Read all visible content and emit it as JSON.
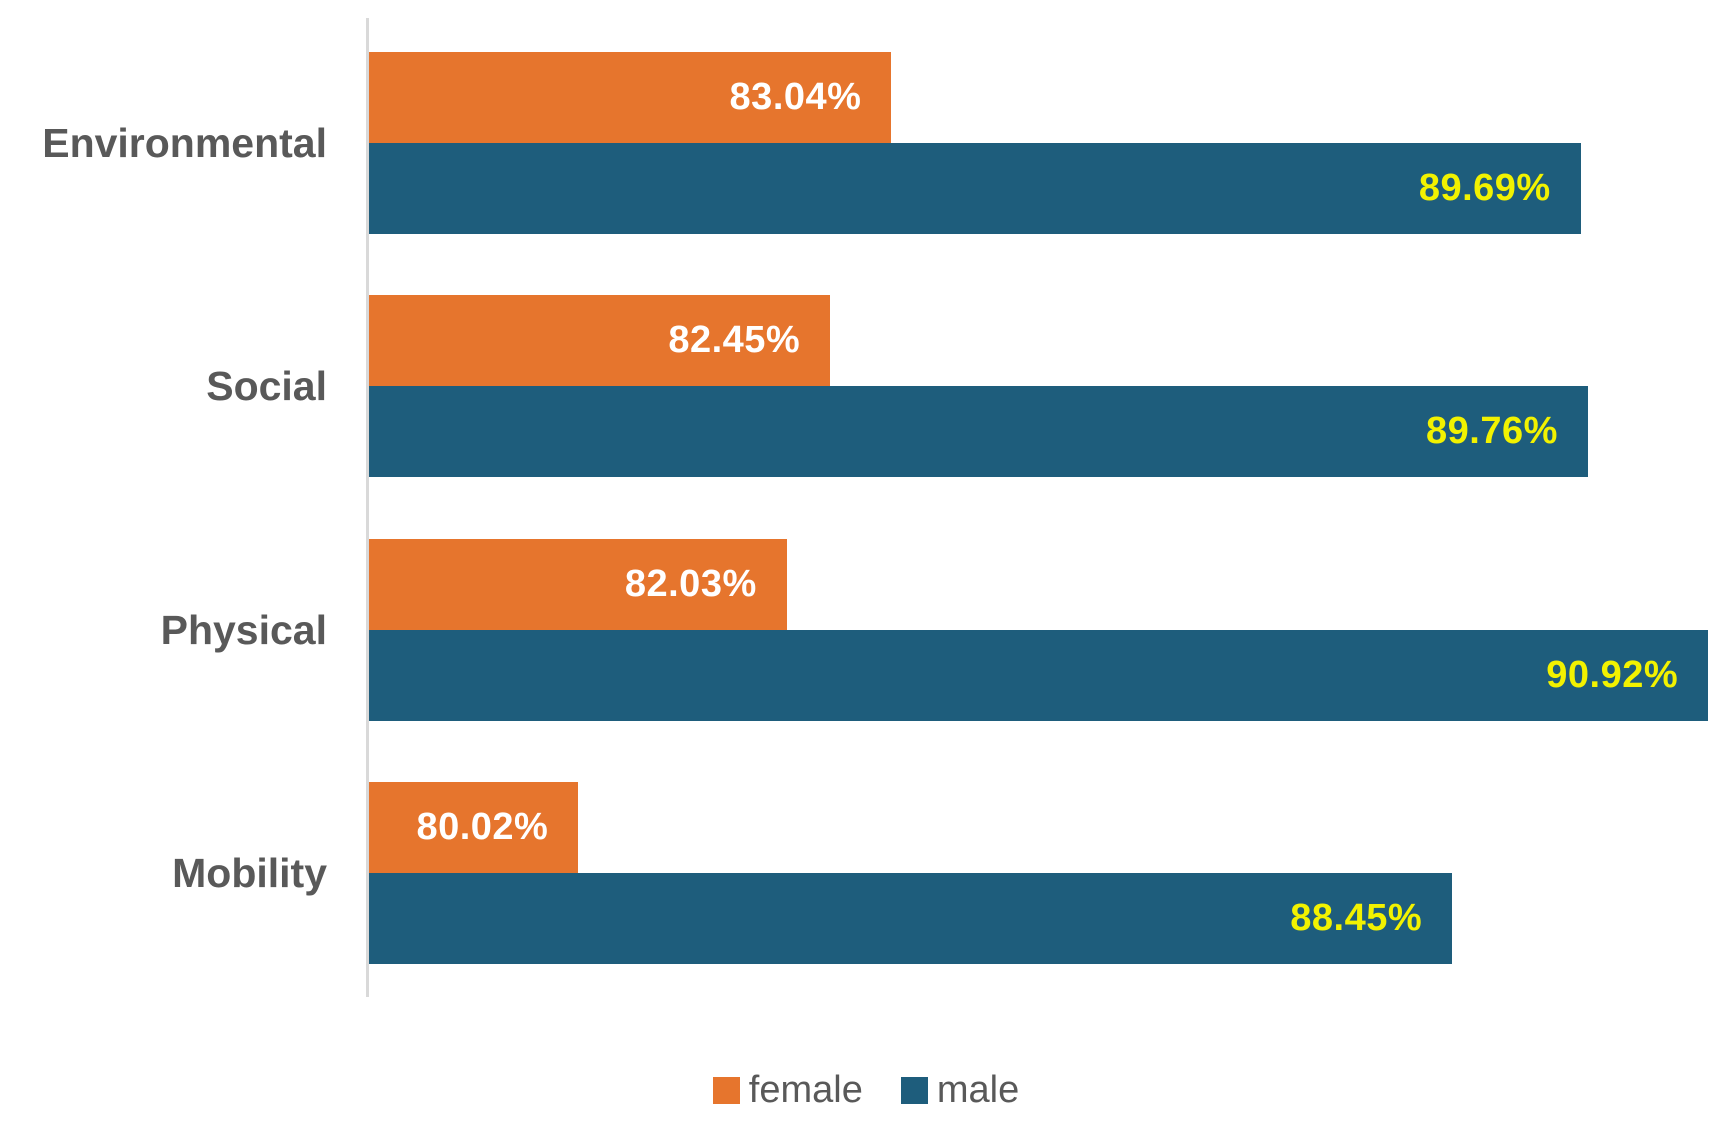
{
  "chart_data": {
    "type": "bar",
    "orientation": "horizontal",
    "title": "",
    "xlabel": "",
    "ylabel": "",
    "grid": false,
    "legend_position": "bottom",
    "xlim": [
      78,
      91.15
    ],
    "categories": [
      "Environmental",
      "Social",
      "Physical",
      "Mobility"
    ],
    "series": [
      {
        "name": "female",
        "color": "#e6752d",
        "label_color": "#ffffff",
        "values": [
          83.04,
          82.45,
          82.03,
          80.02
        ],
        "labels": [
          "83.04%",
          "82.45%",
          "82.03%",
          "80.02%"
        ]
      },
      {
        "name": "male",
        "color": "#1e5d7c",
        "label_color": "#f2f200",
        "values": [
          89.69,
          89.76,
          90.92,
          88.45
        ],
        "labels": [
          "89.69%",
          "89.76%",
          "90.92%",
          "88.45%"
        ]
      }
    ],
    "colors": {
      "axis_line": "#d9d9d9",
      "category_label": "#595959",
      "legend_text": "#595959"
    }
  }
}
